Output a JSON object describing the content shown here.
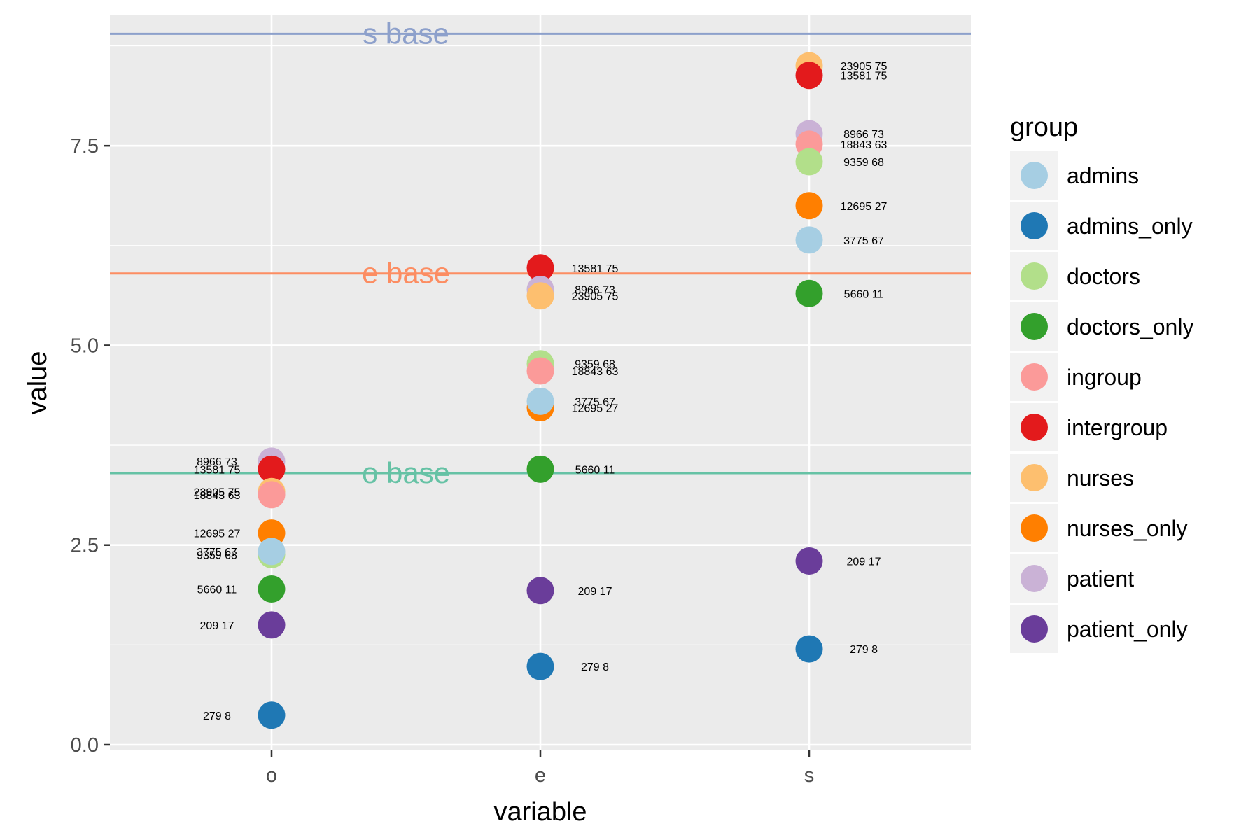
{
  "chart_data": {
    "type": "scatter",
    "xlabel": "variable",
    "ylabel": "value",
    "categories": [
      "o",
      "e",
      "s"
    ],
    "ylim": [
      0,
      9.0
    ],
    "yticks": [
      0.0,
      2.5,
      5.0,
      7.5
    ],
    "ytick_labels": [
      "0.0",
      "2.5",
      "5.0",
      "7.5"
    ],
    "grid": true,
    "legend_position": "right",
    "legend_title": "group",
    "groups": [
      {
        "name": "admins",
        "color": "#A6CEE3"
      },
      {
        "name": "admins_only",
        "color": "#1F78B4"
      },
      {
        "name": "doctors",
        "color": "#B2DF8A"
      },
      {
        "name": "doctors_only",
        "color": "#33A02C"
      },
      {
        "name": "ingroup",
        "color": "#FB9A99"
      },
      {
        "name": "intergroup",
        "color": "#E31A1C"
      },
      {
        "name": "nurses",
        "color": "#FDBF6F"
      },
      {
        "name": "nurses_only",
        "color": "#FF7F00"
      },
      {
        "name": "patient",
        "color": "#CAB2D6"
      },
      {
        "name": "patient_only",
        "color": "#6A3D9A"
      }
    ],
    "baselines": [
      {
        "label": "s base",
        "value": 8.9,
        "color": "#8DA0CB",
        "label_category": "o"
      },
      {
        "label": "e base",
        "value": 5.9,
        "color": "#FC8D62",
        "label_category": "o"
      },
      {
        "label": "o base",
        "value": 3.4,
        "color": "#66C2A5",
        "label_category": "o"
      }
    ],
    "points": [
      {
        "group": "patient",
        "category": "o",
        "value": 3.55,
        "label": "8966 73"
      },
      {
        "group": "intergroup",
        "category": "o",
        "value": 3.45,
        "label": "13581 75"
      },
      {
        "group": "nurses",
        "category": "o",
        "value": 3.17,
        "label": "23905 75"
      },
      {
        "group": "ingroup",
        "category": "o",
        "value": 3.13,
        "label": "18843 63"
      },
      {
        "group": "nurses_only",
        "category": "o",
        "value": 2.65,
        "label": "12695 27"
      },
      {
        "group": "doctors",
        "category": "o",
        "value": 2.38,
        "label": "9359 68"
      },
      {
        "group": "admins",
        "category": "o",
        "value": 2.42,
        "label": "3775 67"
      },
      {
        "group": "doctors_only",
        "category": "o",
        "value": 1.95,
        "label": "5660 11"
      },
      {
        "group": "patient_only",
        "category": "o",
        "value": 1.5,
        "label": "209 17"
      },
      {
        "group": "admins_only",
        "category": "o",
        "value": 0.37,
        "label": "279 8"
      },
      {
        "group": "intergroup",
        "category": "e",
        "value": 5.97,
        "label": "13581 75"
      },
      {
        "group": "patient",
        "category": "e",
        "value": 5.7,
        "label": "8966 73"
      },
      {
        "group": "nurses",
        "category": "e",
        "value": 5.62,
        "label": "23905 75"
      },
      {
        "group": "doctors",
        "category": "e",
        "value": 4.77,
        "label": "9359 68"
      },
      {
        "group": "ingroup",
        "category": "e",
        "value": 4.68,
        "label": "18843 63"
      },
      {
        "group": "nurses_only",
        "category": "e",
        "value": 4.22,
        "label": "12695 27"
      },
      {
        "group": "admins",
        "category": "e",
        "value": 4.3,
        "label": "3775 67"
      },
      {
        "group": "doctors_only",
        "category": "e",
        "value": 3.45,
        "label": "5660 11"
      },
      {
        "group": "patient_only",
        "category": "e",
        "value": 1.93,
        "label": "209 17"
      },
      {
        "group": "admins_only",
        "category": "e",
        "value": 0.98,
        "label": "279 8"
      },
      {
        "group": "nurses",
        "category": "s",
        "value": 8.5,
        "label": "23905 75"
      },
      {
        "group": "intergroup",
        "category": "s",
        "value": 8.38,
        "label": "13581 75"
      },
      {
        "group": "patient",
        "category": "s",
        "value": 7.65,
        "label": "8966 73"
      },
      {
        "group": "ingroup",
        "category": "s",
        "value": 7.52,
        "label": "18843 63"
      },
      {
        "group": "doctors",
        "category": "s",
        "value": 7.3,
        "label": "9359 68"
      },
      {
        "group": "nurses_only",
        "category": "s",
        "value": 6.75,
        "label": "12695 27"
      },
      {
        "group": "admins",
        "category": "s",
        "value": 6.32,
        "label": "3775 67"
      },
      {
        "group": "doctors_only",
        "category": "s",
        "value": 5.65,
        "label": "5660 11"
      },
      {
        "group": "patient_only",
        "category": "s",
        "value": 2.3,
        "label": "209 17"
      },
      {
        "group": "admins_only",
        "category": "s",
        "value": 1.2,
        "label": "279 8"
      }
    ]
  }
}
